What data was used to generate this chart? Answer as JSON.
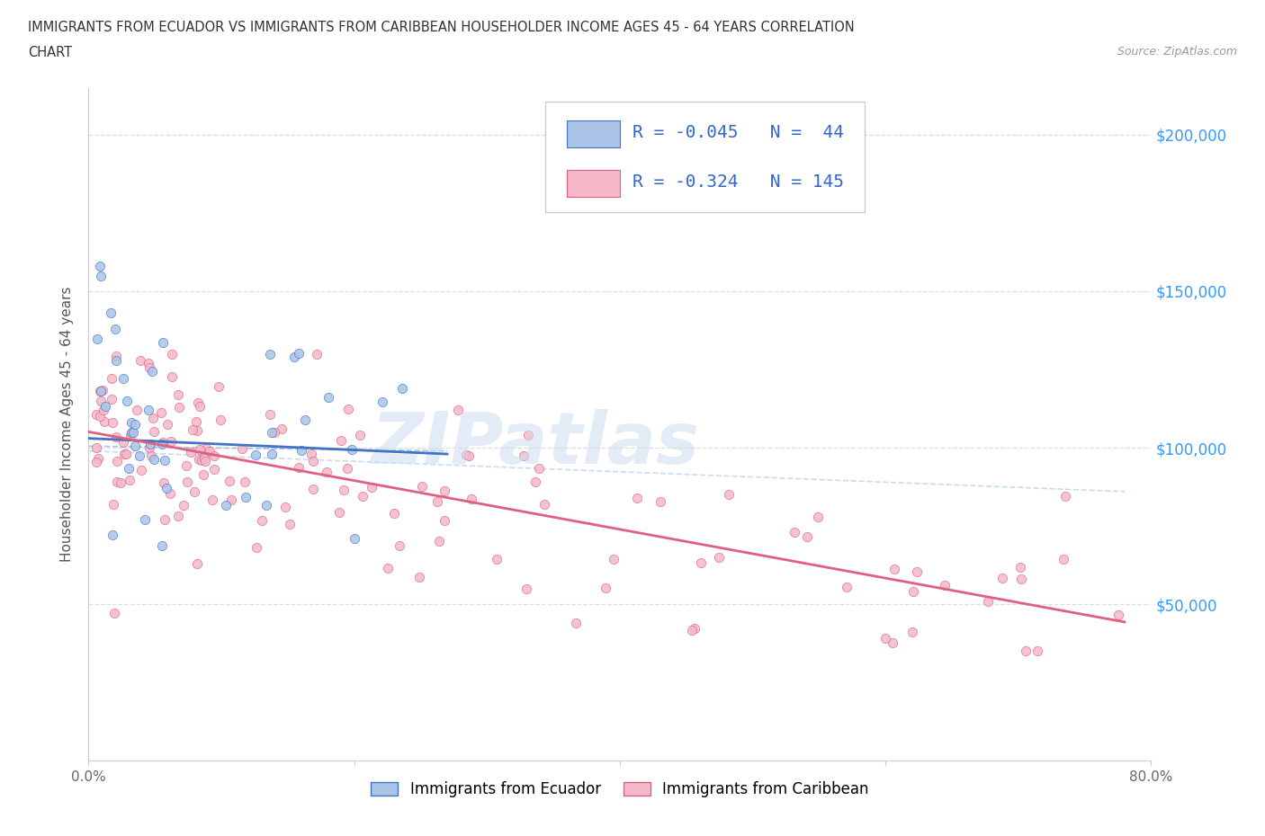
{
  "title_line1": "IMMIGRANTS FROM ECUADOR VS IMMIGRANTS FROM CARIBBEAN HOUSEHOLDER INCOME AGES 45 - 64 YEARS CORRELATION",
  "title_line2": "CHART",
  "source": "Source: ZipAtlas.com",
  "ecuador_R": -0.045,
  "ecuador_N": 44,
  "caribbean_R": -0.324,
  "caribbean_N": 145,
  "ecuador_scatter_color": "#aac4e8",
  "ecuador_line_color": "#4472c4",
  "ecuador_edge_color": "#4472c4",
  "caribbean_scatter_color": "#f4b8c8",
  "caribbean_line_color": "#e06080",
  "caribbean_edge_color": "#e06080",
  "dashed_ec_color": "#7ab0e0",
  "dashed_ca_color": "#b0ccee",
  "y_tick_labels": [
    "$50,000",
    "$100,000",
    "$150,000",
    "$200,000"
  ],
  "y_tick_values": [
    50000,
    100000,
    150000,
    200000
  ],
  "x_tick_labels": [
    "0.0%",
    "",
    "",
    "",
    "80.0%"
  ],
  "x_tick_values": [
    0.0,
    0.2,
    0.4,
    0.6,
    0.8
  ],
  "ylabel": "Householder Income Ages 45 - 64 years",
  "legend_label_ecuador": "Immigrants from Ecuador",
  "legend_label_caribbean": "Immigrants from Caribbean",
  "watermark": "ZIPatlas",
  "background_color": "#ffffff",
  "grid_color": "#dddddd",
  "right_label_color": "#3399ff",
  "title_color": "#333333",
  "source_color": "#999999",
  "tick_color": "#666666",
  "legend_r_color": "#3366cc",
  "ylim_max": 215000,
  "ylim_min": 0
}
